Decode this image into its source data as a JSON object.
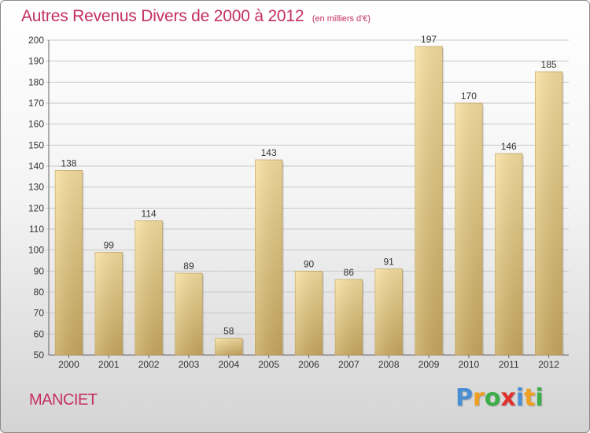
{
  "header": {
    "title": "Autres Revenus Divers de 2000 à 2012",
    "unit": "(en milliers d'€)"
  },
  "footer": {
    "town": "MANCIET",
    "brand": [
      "P",
      "r",
      "o",
      "x",
      "i",
      "t",
      "i"
    ],
    "brand_colors": [
      "#4a8fd4",
      "#f0a020",
      "#3cae48",
      "#e0302c",
      "#4a8fd4",
      "#f0a020",
      "#3cae48"
    ]
  },
  "chart_data": {
    "type": "bar",
    "categories": [
      "2000",
      "2001",
      "2002",
      "2003",
      "2004",
      "2005",
      "2006",
      "2007",
      "2008",
      "2009",
      "2010",
      "2011",
      "2012"
    ],
    "values": [
      138,
      99,
      114,
      89,
      58,
      143,
      90,
      86,
      91,
      197,
      170,
      146,
      185
    ],
    "title": "Autres Revenus Divers de 2000 à 2012",
    "ylim": [
      50,
      200
    ],
    "yticks": [
      50,
      60,
      70,
      80,
      90,
      100,
      110,
      120,
      130,
      140,
      150,
      160,
      170,
      180,
      190,
      200
    ],
    "grid": true,
    "bar_color": "#e8cc80",
    "accent_color": "#c4305e"
  }
}
